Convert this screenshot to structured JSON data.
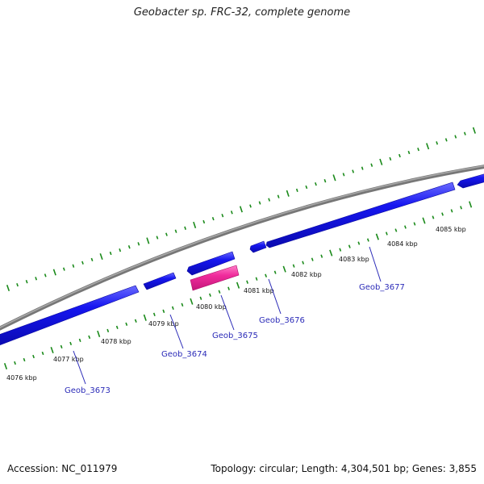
{
  "title": "Geobacter sp. FRC-32, complete genome",
  "footer": {
    "accession": "Accession: NC_011979",
    "summary": "Topology: circular; Length: 4,304,501 bp; Genes: 3,855"
  },
  "colors": {
    "backbone": "#888888",
    "gene_plus": "#1010e8",
    "gene_highlight": "#ee2299",
    "ticks": "#1a8a1a",
    "gene_label": "#2b2bb8",
    "pointer": "#2b2bb8"
  },
  "scale_labels": [
    "4076 kbp",
    "4077 kbp",
    "4078 kbp",
    "4079 kbp",
    "4080 kbp",
    "4081 kbp",
    "4082 kbp",
    "4083 kbp",
    "4084 kbp",
    "4085 kbp"
  ],
  "genes": [
    {
      "name": "Geob_3673",
      "strand": "lower",
      "highlight": false
    },
    {
      "name": "Geob_3674",
      "strand": "lower",
      "highlight": false
    },
    {
      "name": "Geob_3675",
      "strand": "lower",
      "highlight": true
    },
    {
      "name": "Geob_3676",
      "strand": "upper",
      "highlight": false
    },
    {
      "name": "Geob_3677",
      "strand": "upper",
      "highlight": false
    }
  ]
}
